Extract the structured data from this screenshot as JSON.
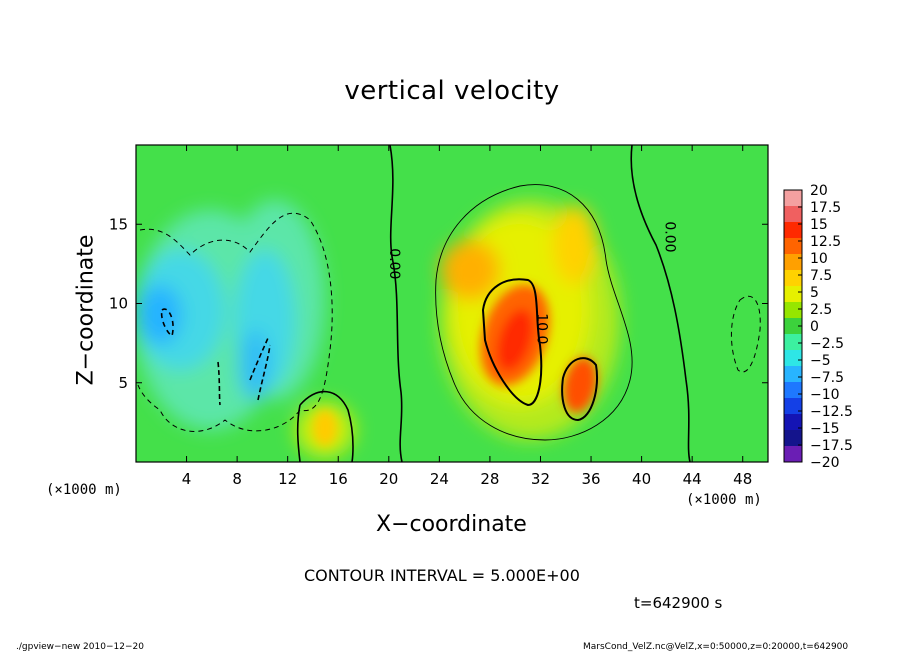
{
  "chart_data": {
    "type": "heatmap",
    "title": "vertical velocity",
    "xlabel": "X−coordinate",
    "ylabel": "Z−coordinate",
    "x_unit_label": "(×1000 m)",
    "x_ticks": [
      "4",
      "8",
      "12",
      "16",
      "20",
      "24",
      "28",
      "32",
      "36",
      "40",
      "44",
      "48"
    ],
    "y_ticks": [
      "5",
      "10",
      "15"
    ],
    "xlim": [
      0,
      50
    ],
    "ylim": [
      0,
      20
    ],
    "colorbar": {
      "labels": [
        "20",
        "17.5",
        "15",
        "12.5",
        "10",
        "7.5",
        "5",
        "2.5",
        "0",
        "−2.5",
        "−5",
        "−7.5",
        "−10",
        "−12.5",
        "−15",
        "−17.5",
        "−20"
      ],
      "colors": [
        "#f4a0a0",
        "#f06060",
        "#ff2a00",
        "#ff6400",
        "#ffa000",
        "#ffd200",
        "#e6f000",
        "#96e600",
        "#3cd23c",
        "#3cf0a0",
        "#2ee6e6",
        "#28b4ff",
        "#1e78ff",
        "#1440e6",
        "#1414b4",
        "#14148c",
        "#6a1eb4"
      ]
    },
    "contour_labels": [
      "0.00",
      "10.0",
      "0.00"
    ],
    "contour_interval": "CONTOUR INTERVAL = 5.000E+00",
    "time_label": "t=642900 s"
  },
  "footer": {
    "left": "./gpview−new  2010−12−20",
    "right": "MarsCond_VelZ.nc@VelZ,x=0:50000,z=0:20000,t=642900"
  }
}
